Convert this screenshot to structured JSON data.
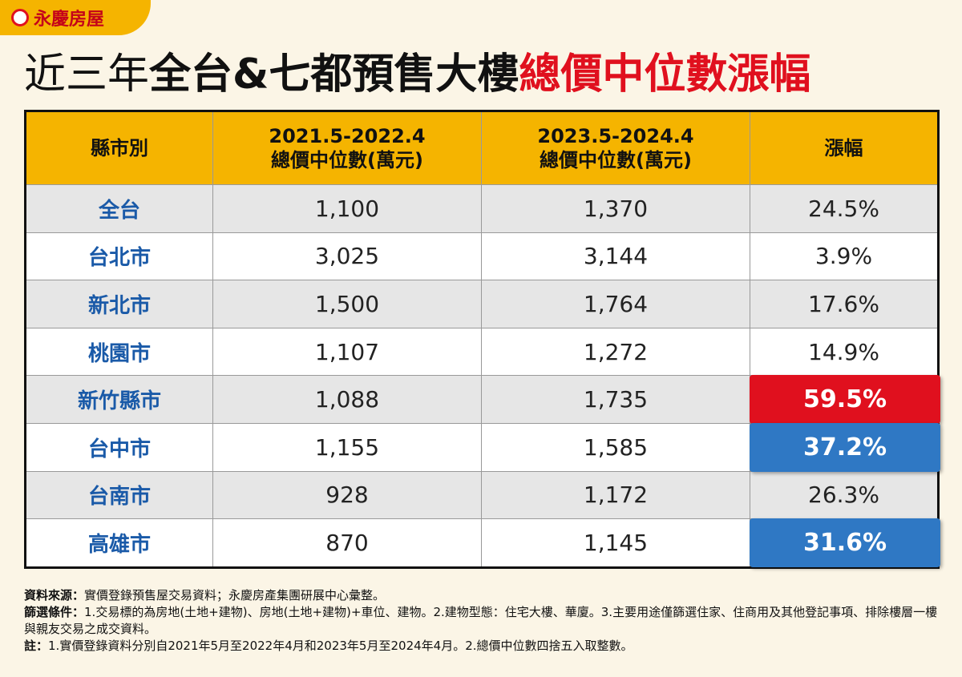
{
  "logo": "永慶房屋",
  "title": {
    "part1": "近三年",
    "part2": "全台&七都預售大樓",
    "part3": "總價中位數漲幅"
  },
  "table": {
    "header": [
      [
        "縣市別"
      ],
      [
        "2021.5-2022.4",
        "總價中位數(萬元)"
      ],
      [
        "2023.5-2024.4",
        "總價中位數(萬元)"
      ],
      [
        "漲幅"
      ]
    ],
    "rows": [
      {
        "cells": [
          "全台",
          "1,100",
          "1,370",
          "24.5%"
        ]
      },
      {
        "cells": [
          "台北市",
          "3,025",
          "3,144",
          "3.9%"
        ]
      },
      {
        "cells": [
          "新北市",
          "1,500",
          "1,764",
          "17.6%"
        ]
      },
      {
        "cells": [
          "桃園市",
          "1,107",
          "1,272",
          "14.9%"
        ]
      },
      {
        "cells": [
          "新竹縣市",
          "1,088",
          "1,735",
          "59.5%"
        ],
        "highlight": "#e0101e"
      },
      {
        "cells": [
          "台中市",
          "1,155",
          "1,585",
          "37.2%"
        ],
        "highlight": "#2f78c4"
      },
      {
        "cells": [
          "台南市",
          "928",
          "1,172",
          "26.3%"
        ]
      },
      {
        "cells": [
          "高雄市",
          "870",
          "1,145",
          "31.6%"
        ],
        "highlight": "#2f78c4"
      }
    ]
  },
  "notes": [
    {
      "label": "資料來源：",
      "text": "實價登錄預售屋交易資料；永慶房產集團研展中心彙整。"
    },
    {
      "label": "篩選條件：",
      "text": "1.交易標的為房地(土地+建物)、房地(土地+建物)+車位、建物。2.建物型態：住宅大樓、華廈。3.主要用途僅篩選住家、住商用及其他登記事項、排除樓層一樓與親友交易之成交資料。"
    },
    {
      "label": "註：",
      "text": "1.實價登錄資料分別自2021年5月至2022年4月和2023年5月至2024年4月。2.總價中位數四捨五入取整數。"
    }
  ]
}
